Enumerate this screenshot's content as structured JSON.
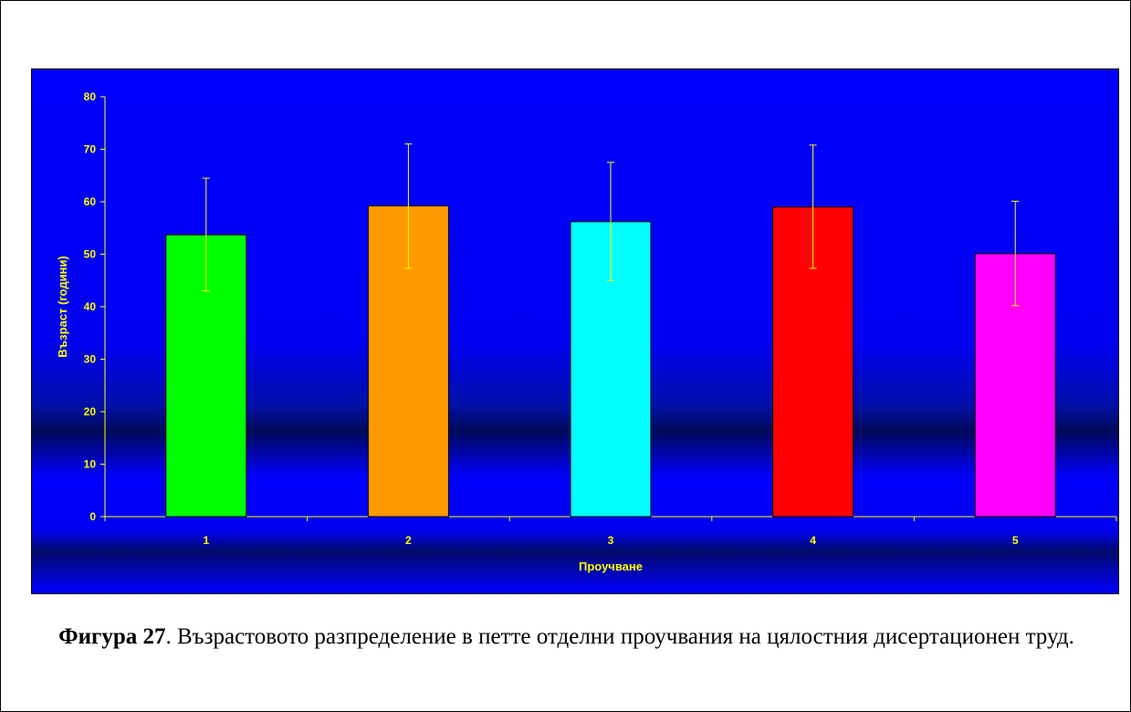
{
  "caption": {
    "label": "Фигура 27",
    "text": ". Възрастовото разпределение в петте отделни проучвания на цялостния дисертационен труд."
  },
  "chart_data": {
    "type": "bar",
    "categories": [
      "1",
      "2",
      "3",
      "4",
      "5"
    ],
    "values": [
      53.7,
      59.2,
      56.2,
      59.0,
      50.1
    ],
    "error_high": [
      64.5,
      71.0,
      67.5,
      70.8,
      60.1
    ],
    "error_low": [
      43.0,
      47.3,
      45.0,
      47.3,
      40.2
    ],
    "colors": [
      "#00ff00",
      "#ff9900",
      "#00ffff",
      "#ff0000",
      "#ff00ff"
    ],
    "xlabel": "Проучване",
    "ylabel": "Възраст (години)",
    "ylim": [
      0,
      80
    ],
    "yticks": [
      "0",
      "10",
      "20",
      "30",
      "40",
      "50",
      "60",
      "70",
      "80"
    ],
    "grid": false,
    "legend": "none",
    "background": "#0000ff",
    "text_color": "#ffff00"
  }
}
